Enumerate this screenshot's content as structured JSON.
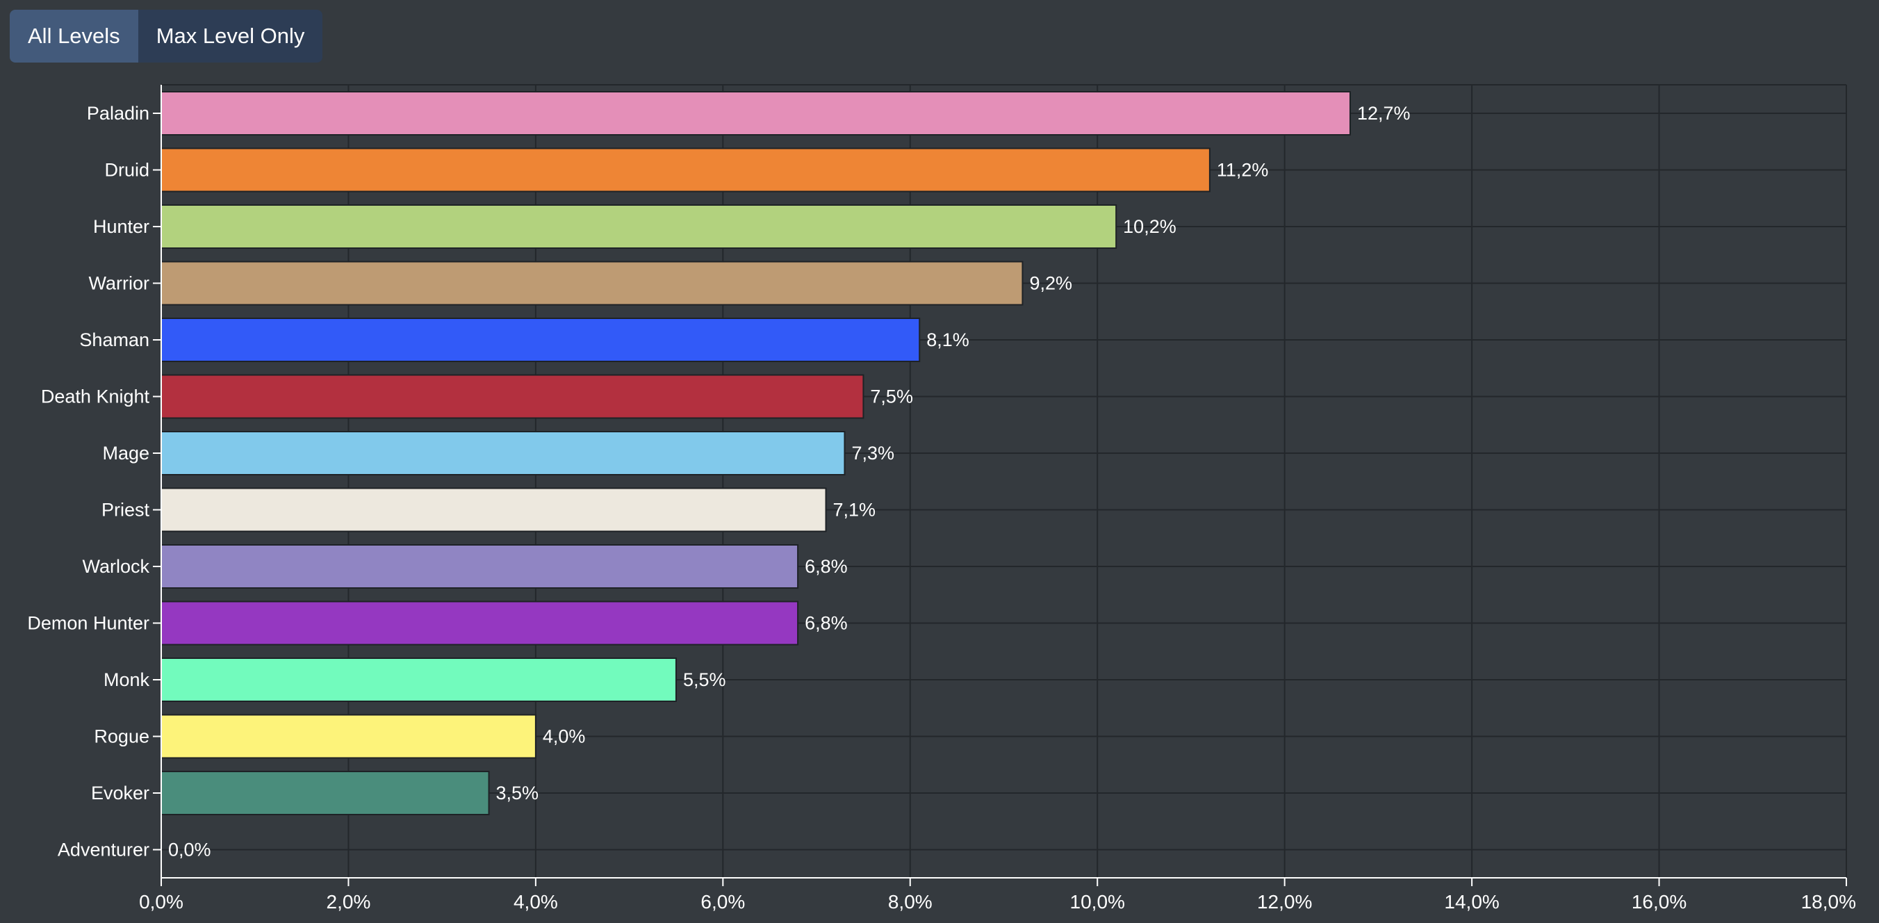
{
  "controls": {
    "all_levels_label": "All Levels",
    "max_level_label": "Max Level Only",
    "selected": "All Levels"
  },
  "chart_data": {
    "type": "bar",
    "orientation": "horizontal",
    "title": "",
    "xlabel": "",
    "ylabel": "",
    "xlim": [
      0,
      18
    ],
    "x_ticks": [
      0,
      2,
      4,
      6,
      8,
      10,
      12,
      14,
      16,
      18
    ],
    "x_tick_labels": [
      "0,0%",
      "2,0%",
      "4,0%",
      "6,0%",
      "8,0%",
      "10,0%",
      "12,0%",
      "14,0%",
      "16,0%",
      "18,0%"
    ],
    "grid": true,
    "categories": [
      "Paladin",
      "Druid",
      "Hunter",
      "Warrior",
      "Shaman",
      "Death Knight",
      "Mage",
      "Priest",
      "Warlock",
      "Demon Hunter",
      "Monk",
      "Rogue",
      "Evoker",
      "Adventurer"
    ],
    "values": [
      12.7,
      11.2,
      10.2,
      9.2,
      8.1,
      7.5,
      7.3,
      7.1,
      6.8,
      6.8,
      5.5,
      4.0,
      3.5,
      0.0
    ],
    "value_labels": [
      "12,7%",
      "11,2%",
      "10,2%",
      "9,2%",
      "8,1%",
      "7,5%",
      "7,3%",
      "7,1%",
      "6,8%",
      "6,8%",
      "5,5%",
      "4,0%",
      "3,5%",
      "0,0%"
    ],
    "colors": [
      "#e48fb8",
      "#ee8535",
      "#b2d27e",
      "#be9b73",
      "#325af8",
      "#b3303f",
      "#81c9eb",
      "#ede8de",
      "#9085c3",
      "#9538c1",
      "#72fbbd",
      "#fdf37a",
      "#4a8d7c",
      "#ffffff"
    ]
  }
}
